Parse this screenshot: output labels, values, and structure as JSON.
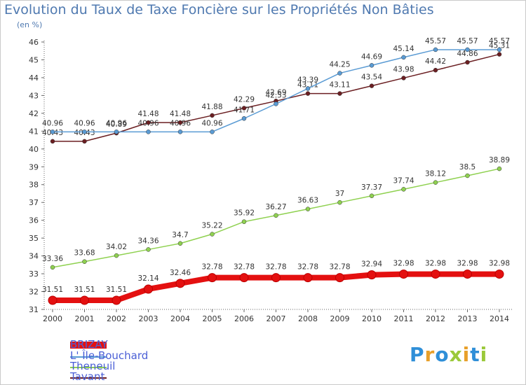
{
  "title": "Evolution du Taux de Taxe Foncière sur les Propriétés Non Bâties",
  "unit_label": "(en %)",
  "brand": "Proxiti",
  "chart_data": {
    "type": "line",
    "x": [
      2000,
      2001,
      2002,
      2003,
      2004,
      2005,
      2006,
      2007,
      2008,
      2009,
      2010,
      2011,
      2012,
      2013,
      2014
    ],
    "ylim": [
      31,
      46
    ],
    "yticks": [
      31,
      32,
      33,
      34,
      35,
      36,
      37,
      38,
      39,
      40,
      41,
      42,
      43,
      44,
      45,
      46
    ],
    "grid": false,
    "legend_position": "bottom-left",
    "series": [
      {
        "name": "Tavant",
        "color": "#6b1f22",
        "values": [
          40.43,
          40.43,
          40.89,
          41.48,
          41.48,
          41.88,
          42.29,
          42.69,
          43.11,
          43.11,
          43.54,
          43.98,
          44.42,
          44.86,
          45.31
        ],
        "labels": [
          "40.43",
          "40.43",
          "40.89",
          "41.48",
          "41.48",
          "41.88",
          "42.29",
          "42.69",
          "43.11",
          "43.11",
          "43.54",
          "43.98",
          "44.42",
          "44.86",
          "45.31"
        ]
      },
      {
        "name": "L' Île-Bouchard",
        "color": "#5a9bd4",
        "values": [
          40.96,
          40.96,
          40.96,
          40.96,
          40.96,
          40.96,
          41.71,
          42.53,
          43.39,
          44.25,
          44.69,
          45.14,
          45.57,
          45.57,
          45.57
        ],
        "labels": [
          "40.96",
          "40.96",
          "40.96",
          "40.96",
          "40.96",
          "40.96",
          "41.71",
          "42.53",
          "43.39",
          "44.25",
          "44.69",
          "45.14",
          "45.57",
          "45.57",
          "45.57"
        ]
      },
      {
        "name": "Theneuil",
        "color": "#8fd150",
        "values": [
          33.36,
          33.68,
          34.02,
          34.36,
          34.7,
          35.22,
          35.92,
          36.27,
          36.63,
          37,
          37.37,
          37.74,
          38.12,
          38.5,
          38.89
        ],
        "labels": [
          "33.36",
          "33.68",
          "34.02",
          "34.36",
          "34.7",
          "35.22",
          "35.92",
          "36.27",
          "36.63",
          "37",
          "37.37",
          "37.74",
          "38.12",
          "38.5",
          "38.89"
        ]
      },
      {
        "name": "BRIZAY",
        "color": "#e41010",
        "values": [
          31.51,
          31.51,
          31.51,
          32.14,
          32.46,
          32.78,
          32.78,
          32.78,
          32.78,
          32.78,
          32.94,
          32.98,
          32.98,
          32.98,
          32.98
        ],
        "labels": [
          "31.51",
          "31.51",
          "31.51",
          "32.14",
          "32.46",
          "32.78",
          "32.78",
          "32.78",
          "32.78",
          "32.78",
          "32.94",
          "32.98",
          "32.98",
          "32.98",
          "32.98"
        ]
      }
    ]
  },
  "legend": [
    {
      "name": "BRIZAY",
      "color": "#e41010"
    },
    {
      "name": "L' Île-Bouchard",
      "color": "#5a9bd4"
    },
    {
      "name": "Theneuil",
      "color": "#8fd150"
    },
    {
      "name": "Tavant",
      "color": "#6b1f22"
    }
  ]
}
